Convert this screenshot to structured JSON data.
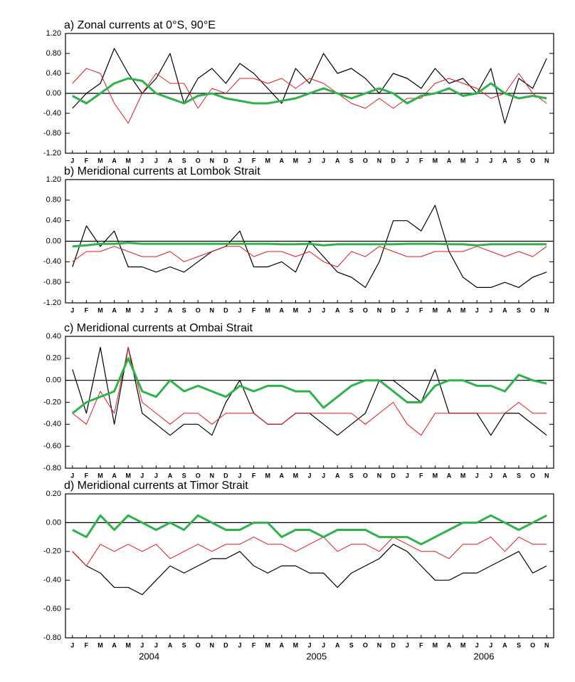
{
  "chart_data": [
    {
      "type": "line",
      "title": "a) Zonal currents at 0°S, 90°E",
      "categories": [
        "J",
        "F",
        "M",
        "A",
        "M",
        "J",
        "J",
        "A",
        "S",
        "O",
        "N",
        "D",
        "J",
        "F",
        "M",
        "A",
        "M",
        "J",
        "J",
        "A",
        "S",
        "O",
        "N",
        "D",
        "J",
        "F",
        "M",
        "A",
        "M",
        "J",
        "J",
        "A",
        "S",
        "O",
        "N"
      ],
      "ylim": [
        -1.2,
        1.2
      ],
      "yticks": [
        {
          "value": -1.2,
          "label": "-1.20"
        },
        {
          "value": -0.8,
          "label": "-0.80"
        },
        {
          "value": -0.4,
          "label": "-0.40"
        },
        {
          "value": 0,
          "label": "0.00"
        },
        {
          "value": 0.4,
          "label": "0.40"
        },
        {
          "value": 0.8,
          "label": "0.80"
        },
        {
          "value": 1.2,
          "label": "1.20"
        }
      ],
      "series": [
        {
          "color": "#000000",
          "values": [
            -0.3,
            0.0,
            0.2,
            0.9,
            0.4,
            0.0,
            0.3,
            0.8,
            -0.2,
            0.3,
            0.5,
            0.2,
            0.6,
            0.4,
            0.1,
            -0.2,
            0.5,
            0.2,
            0.8,
            0.4,
            0.5,
            0.3,
            0.0,
            0.4,
            0.3,
            0.1,
            0.5,
            0.2,
            0.3,
            0.0,
            0.5,
            -0.6,
            0.3,
            0.1,
            0.7
          ]
        },
        {
          "color": "#e41a1c",
          "values": [
            0.2,
            0.5,
            0.4,
            -0.2,
            -0.6,
            0.0,
            0.4,
            0.2,
            0.2,
            -0.3,
            0.1,
            0.0,
            0.3,
            0.3,
            0.2,
            0.3,
            0.1,
            0.3,
            0.2,
            0.0,
            -0.2,
            -0.3,
            -0.1,
            -0.3,
            -0.1,
            -0.1,
            0.2,
            0.3,
            0.2,
            0.1,
            -0.1,
            0.0,
            0.4,
            0.0,
            -0.2
          ]
        },
        {
          "color": "#2db34a",
          "values": [
            -0.05,
            -0.2,
            0.0,
            0.2,
            0.3,
            0.25,
            0.0,
            -0.1,
            -0.2,
            -0.05,
            0.0,
            -0.1,
            -0.15,
            -0.2,
            -0.2,
            -0.15,
            -0.1,
            0.0,
            0.1,
            0.0,
            -0.1,
            0.0,
            0.1,
            0.0,
            -0.2,
            -0.05,
            0.0,
            0.1,
            -0.05,
            0.0,
            0.2,
            0.0,
            -0.1,
            -0.05,
            -0.1
          ]
        }
      ]
    },
    {
      "type": "line",
      "title": "b) Meridional currents at Lombok Strait",
      "categories": [
        "J",
        "F",
        "M",
        "A",
        "M",
        "J",
        "J",
        "A",
        "S",
        "O",
        "N",
        "D",
        "J",
        "F",
        "M",
        "A",
        "M",
        "J",
        "J",
        "A",
        "S",
        "O",
        "N",
        "D",
        "J",
        "F",
        "M",
        "A",
        "M",
        "J",
        "J",
        "A",
        "S",
        "O",
        "N"
      ],
      "ylim": [
        -1.2,
        1.2
      ],
      "yticks": [
        {
          "value": -1.2,
          "label": "-1.20"
        },
        {
          "value": -0.8,
          "label": "-0.80"
        },
        {
          "value": -0.4,
          "label": "-0.40"
        },
        {
          "value": 0,
          "label": "0.00"
        },
        {
          "value": 0.4,
          "label": "0.40"
        },
        {
          "value": 0.8,
          "label": "0.80"
        },
        {
          "value": 1.2,
          "label": "1.20"
        }
      ],
      "series": [
        {
          "color": "#000000",
          "values": [
            -0.5,
            0.3,
            -0.1,
            0.2,
            -0.5,
            -0.5,
            -0.6,
            -0.5,
            -0.6,
            -0.4,
            -0.2,
            -0.1,
            0.2,
            -0.5,
            -0.5,
            -0.4,
            -0.6,
            0.0,
            -0.3,
            -0.6,
            -0.7,
            -0.9,
            -0.4,
            0.4,
            0.4,
            0.2,
            0.7,
            -0.2,
            -0.7,
            -0.9,
            -0.9,
            -0.8,
            -0.9,
            -0.7,
            -0.6
          ]
        },
        {
          "color": "#e41a1c",
          "values": [
            -0.4,
            -0.2,
            -0.2,
            -0.1,
            -0.2,
            -0.3,
            -0.3,
            -0.2,
            -0.4,
            -0.3,
            -0.2,
            -0.1,
            -0.1,
            -0.3,
            -0.2,
            -0.2,
            -0.3,
            -0.2,
            -0.4,
            -0.5,
            -0.2,
            -0.3,
            -0.1,
            -0.2,
            -0.3,
            -0.3,
            -0.2,
            -0.2,
            -0.2,
            -0.1,
            -0.2,
            -0.3,
            -0.2,
            -0.3,
            -0.1
          ]
        },
        {
          "color": "#2db34a",
          "values": [
            -0.1,
            -0.08,
            -0.05,
            -0.05,
            -0.03,
            -0.05,
            -0.05,
            -0.05,
            -0.05,
            -0.05,
            -0.05,
            -0.05,
            -0.05,
            -0.05,
            -0.05,
            -0.06,
            -0.06,
            -0.05,
            -0.08,
            -0.06,
            -0.06,
            -0.06,
            -0.06,
            -0.06,
            -0.05,
            -0.05,
            -0.05,
            -0.06,
            -0.06,
            -0.08,
            -0.06,
            -0.06,
            -0.06,
            -0.06,
            -0.06
          ]
        }
      ]
    },
    {
      "type": "line",
      "title": "c) Meridional currents at Ombai Strait",
      "categories": [
        "J",
        "F",
        "M",
        "A",
        "M",
        "J",
        "J",
        "A",
        "S",
        "O",
        "N",
        "D",
        "J",
        "F",
        "M",
        "A",
        "M",
        "J",
        "J",
        "A",
        "S",
        "O",
        "N",
        "D",
        "J",
        "F",
        "M",
        "A",
        "M",
        "J",
        "J",
        "A",
        "S",
        "O",
        "N"
      ],
      "ylim": [
        -0.8,
        0.4
      ],
      "yticks": [
        {
          "value": -0.8,
          "label": "-0.80"
        },
        {
          "value": -0.6,
          "label": "-0.60"
        },
        {
          "value": -0.4,
          "label": "-0.40"
        },
        {
          "value": -0.2,
          "label": "-0.20"
        },
        {
          "value": 0,
          "label": "0.00"
        },
        {
          "value": 0.2,
          "label": "0.20"
        },
        {
          "value": 0.4,
          "label": "0.40"
        }
      ],
      "series": [
        {
          "color": "#000000",
          "values": [
            0.1,
            -0.3,
            0.3,
            -0.4,
            0.3,
            -0.3,
            -0.4,
            -0.5,
            -0.4,
            -0.4,
            -0.5,
            -0.2,
            0.0,
            -0.3,
            -0.4,
            -0.4,
            -0.3,
            -0.3,
            -0.4,
            -0.5,
            -0.4,
            -0.3,
            0.0,
            0.0,
            -0.1,
            -0.2,
            0.1,
            -0.3,
            -0.3,
            -0.3,
            -0.5,
            -0.3,
            -0.3,
            -0.4,
            -0.5
          ]
        },
        {
          "color": "#e41a1c",
          "values": [
            -0.3,
            -0.4,
            -0.1,
            -0.3,
            0.3,
            -0.2,
            -0.3,
            -0.4,
            -0.3,
            -0.3,
            -0.4,
            -0.3,
            -0.3,
            -0.3,
            -0.4,
            -0.4,
            -0.3,
            -0.3,
            -0.3,
            -0.3,
            -0.3,
            -0.4,
            -0.3,
            -0.2,
            -0.4,
            -0.5,
            -0.3,
            -0.3,
            -0.3,
            -0.3,
            -0.3,
            -0.3,
            -0.2,
            -0.3,
            -0.3
          ]
        },
        {
          "color": "#2db34a",
          "values": [
            -0.3,
            -0.2,
            -0.15,
            -0.1,
            0.2,
            -0.1,
            -0.15,
            0.0,
            -0.1,
            -0.05,
            -0.1,
            -0.15,
            -0.05,
            -0.1,
            -0.05,
            -0.05,
            -0.1,
            -0.1,
            -0.25,
            -0.15,
            -0.05,
            0.0,
            0.0,
            -0.1,
            -0.2,
            -0.2,
            -0.05,
            0.0,
            0.0,
            -0.05,
            -0.05,
            -0.1,
            0.05,
            0.0,
            -0.03
          ]
        }
      ]
    },
    {
      "type": "line",
      "title": "d) Meridional currents at Timor Strait",
      "categories": [
        "J",
        "F",
        "M",
        "A",
        "M",
        "J",
        "J",
        "A",
        "S",
        "O",
        "N",
        "D",
        "J",
        "F",
        "M",
        "A",
        "M",
        "J",
        "J",
        "A",
        "S",
        "O",
        "N",
        "D",
        "J",
        "F",
        "M",
        "A",
        "M",
        "J",
        "J",
        "A",
        "S",
        "O",
        "N"
      ],
      "years": [
        "2004",
        "2005",
        "2006"
      ],
      "ylim": [
        -0.8,
        0.2
      ],
      "yticks": [
        {
          "value": -0.8,
          "label": "-0.80"
        },
        {
          "value": -0.6,
          "label": "-0.60"
        },
        {
          "value": -0.4,
          "label": "-0.40"
        },
        {
          "value": -0.2,
          "label": "-0.20"
        },
        {
          "value": 0,
          "label": "0.00"
        },
        {
          "value": 0.2,
          "label": "0.20"
        }
      ],
      "series": [
        {
          "color": "#000000",
          "values": [
            -0.2,
            -0.3,
            -0.35,
            -0.45,
            -0.45,
            -0.5,
            -0.4,
            -0.3,
            -0.35,
            -0.3,
            -0.25,
            -0.25,
            -0.2,
            -0.3,
            -0.35,
            -0.3,
            -0.3,
            -0.35,
            -0.35,
            -0.45,
            -0.35,
            -0.3,
            -0.25,
            -0.15,
            -0.2,
            -0.3,
            -0.4,
            -0.4,
            -0.35,
            -0.35,
            -0.3,
            -0.25,
            -0.2,
            -0.35,
            -0.3
          ]
        },
        {
          "color": "#e41a1c",
          "values": [
            -0.2,
            -0.3,
            -0.15,
            -0.2,
            -0.15,
            -0.2,
            -0.15,
            -0.25,
            -0.2,
            -0.15,
            -0.2,
            -0.15,
            -0.15,
            -0.1,
            -0.15,
            -0.15,
            -0.2,
            -0.15,
            -0.1,
            -0.2,
            -0.15,
            -0.15,
            -0.2,
            -0.1,
            -0.15,
            -0.2,
            -0.2,
            -0.25,
            -0.15,
            -0.15,
            -0.1,
            -0.2,
            -0.1,
            -0.15,
            -0.15
          ]
        },
        {
          "color": "#2db34a",
          "values": [
            -0.05,
            -0.1,
            0.05,
            -0.05,
            0.05,
            0.0,
            -0.05,
            0.0,
            -0.05,
            0.05,
            0.0,
            -0.05,
            -0.05,
            0.0,
            0.0,
            -0.1,
            -0.05,
            -0.05,
            -0.1,
            -0.05,
            -0.05,
            -0.05,
            -0.1,
            -0.1,
            -0.1,
            -0.15,
            -0.1,
            -0.05,
            0.0,
            0.0,
            0.05,
            0.0,
            -0.05,
            0.0,
            0.05
          ]
        }
      ]
    }
  ]
}
